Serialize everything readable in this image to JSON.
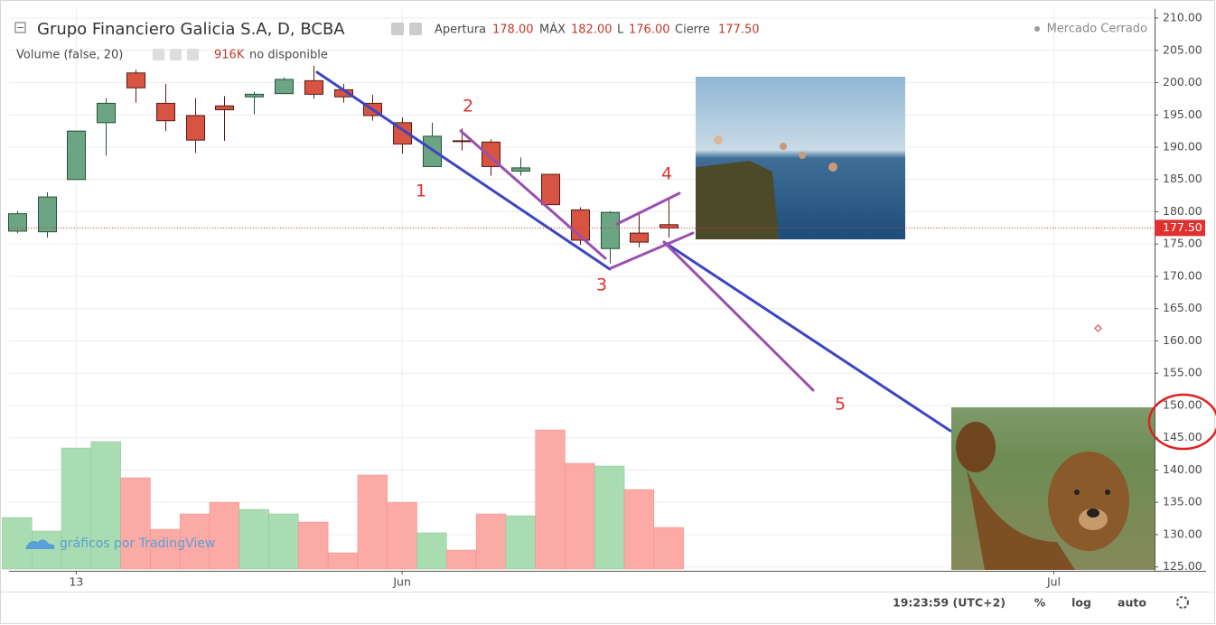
{
  "header": {
    "title": "Grupo Financiero Galicia S.A, D, BCBA",
    "open_label": "Apertura",
    "open_value": "178.00",
    "high_label": "MÁX",
    "high_value": "182.00",
    "low_label": "L",
    "low_value": "176.00",
    "close_label": "Cierre",
    "close_value": "177.50",
    "volume_title": "Volume (false, 20)",
    "volume_value": "916K",
    "volume_status": "no disponible",
    "market_status": "Mercado Cerrado"
  },
  "watermark": "gráficos por TradingView",
  "footer": {
    "time": "19:23:59 (UTC+2)",
    "percent": "%",
    "log": "log",
    "auto": "auto"
  },
  "chart_data": {
    "type": "candlestick",
    "open": [
      177.0,
      176.9,
      185.0,
      193.8,
      201.5,
      196.8,
      194.9,
      196.4,
      197.8,
      198.3,
      200.3,
      198.9,
      196.8,
      193.8,
      187.0,
      191.0,
      190.8,
      186.3,
      185.8,
      180.3,
      174.3,
      176.7,
      178.0
    ],
    "high": [
      180.1,
      183.0,
      192.5,
      197.6,
      202.0,
      199.8,
      197.6,
      197.9,
      198.6,
      200.8,
      202.6,
      199.8,
      198.1,
      194.6,
      193.8,
      192.9,
      191.2,
      188.4,
      185.8,
      180.7,
      180.1,
      179.9,
      182.0
    ],
    "low": [
      176.7,
      176.0,
      185.0,
      188.7,
      196.9,
      192.5,
      189.1,
      191.0,
      195.1,
      198.3,
      197.5,
      196.9,
      194.1,
      189.0,
      187.0,
      189.5,
      185.6,
      185.6,
      181.1,
      174.9,
      172.0,
      174.5,
      176.0
    ],
    "close": [
      179.7,
      182.3,
      192.5,
      196.8,
      199.2,
      194.1,
      191.1,
      195.8,
      198.2,
      200.5,
      198.2,
      197.8,
      194.9,
      190.5,
      191.7,
      190.9,
      187.0,
      186.8,
      181.1,
      175.6,
      179.9,
      175.3,
      177.5
    ],
    "volume": [
      1135000,
      836000,
      2668000,
      2808000,
      2011000,
      876000,
      1215000,
      1473000,
      1314000,
      1215000,
      1035000,
      358000,
      2071000,
      1473000,
      797000,
      418000,
      1215000,
      1175000,
      3067000,
      2330000,
      2270000,
      1752000,
      916000
    ],
    "up_color": "#6ba583",
    "down_color": "#d75442",
    "up_volume_color": "#a9dcb1",
    "down_volume_color": "#fcaaa6",
    "xlim": [
      -0.27,
      38.4
    ],
    "xticks": [
      {
        "value": 2,
        "label": "13"
      },
      {
        "value": 13,
        "label": "Jun"
      },
      {
        "value": 35,
        "label": "Jul"
      }
    ],
    "ylim": [
      124.4,
      211.4
    ],
    "yticks": [
      {
        "value": 210,
        "label": "210.00"
      },
      {
        "value": 205,
        "label": "205.00"
      },
      {
        "value": 200,
        "label": "200.00"
      },
      {
        "value": 195,
        "label": "195.00"
      },
      {
        "value": 190,
        "label": "190.00"
      },
      {
        "value": 185,
        "label": "185.00"
      },
      {
        "value": 180,
        "label": "180.00"
      },
      {
        "value": 175,
        "label": "175.00"
      },
      {
        "value": 170,
        "label": "170.00"
      },
      {
        "value": 165,
        "label": "165.00"
      },
      {
        "value": 160,
        "label": "160.00"
      },
      {
        "value": 155,
        "label": "155.00"
      },
      {
        "value": 150,
        "label": "150.00"
      },
      {
        "value": 145,
        "label": "145.00"
      },
      {
        "value": 140,
        "label": "140.00"
      },
      {
        "value": 135,
        "label": "135.00"
      },
      {
        "value": 130,
        "label": "130.00"
      },
      {
        "value": 125,
        "label": "125.00"
      }
    ],
    "last_price": {
      "value": 177.5,
      "label": "177.50",
      "color": "#e03030"
    },
    "grid": true,
    "annotations": [
      "1",
      "2",
      "3",
      "4",
      "5"
    ]
  }
}
